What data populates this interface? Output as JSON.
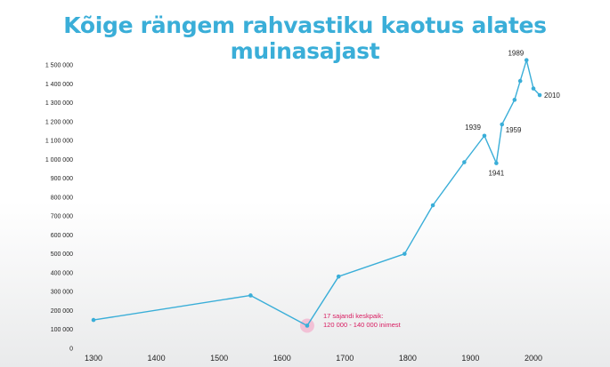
{
  "chart_data": {
    "type": "line",
    "title": "Kõige rängem rahvastiku kaotus alates muinasajast",
    "xlabel": "",
    "ylabel": "",
    "xlim": [
      1290,
      2030
    ],
    "ylim": [
      0,
      1500000
    ],
    "grid": false,
    "x_ticks": [
      1300,
      1400,
      1500,
      1600,
      1700,
      1800,
      1900,
      2000
    ],
    "y_ticks": [
      0,
      100000,
      200000,
      300000,
      400000,
      500000,
      600000,
      700000,
      800000,
      900000,
      1000000,
      1100000,
      1200000,
      1300000,
      1400000,
      1500000
    ],
    "y_tick_labels": [
      "0",
      "100 000",
      "200 000",
      "300 000",
      "400 000",
      "500 000",
      "600 000",
      "700 000",
      "800 000",
      "900 000",
      "1 000 000",
      "1 100 000",
      "1 200 000",
      "1 300 000",
      "1 400 000",
      "1 500 000"
    ],
    "series": [
      {
        "x": [
          1300,
          1550,
          1640,
          1690,
          1795,
          1840,
          1890,
          1922,
          1941,
          1950,
          1970,
          1979,
          1989,
          2000,
          2010
        ],
        "y": [
          150000,
          280000,
          120000,
          380000,
          500000,
          757000,
          985000,
          1125000,
          980000,
          1185000,
          1315000,
          1415000,
          1525000,
          1375000,
          1340000
        ]
      }
    ],
    "annotations": [
      {
        "text": "1939",
        "x": 1922,
        "y": 1125000
      },
      {
        "text": "1941",
        "x": 1941,
        "y": 980000
      },
      {
        "text": "1959",
        "x": 1950,
        "y": 1185000
      },
      {
        "text": "1989",
        "x": 1989,
        "y": 1525000
      },
      {
        "text": "2010",
        "x": 2010,
        "y": 1340000
      }
    ],
    "highlight": {
      "x": 1640,
      "y": 120000,
      "color": "#f3b5cf",
      "lines": [
        "17 sajandi keskpaik:",
        "120 000 -  140 000 inimest"
      ]
    },
    "colors": {
      "line": "#3aaed8",
      "title": "#3aaed8",
      "highlight_text": "#d81b60",
      "text": "#222222"
    }
  }
}
